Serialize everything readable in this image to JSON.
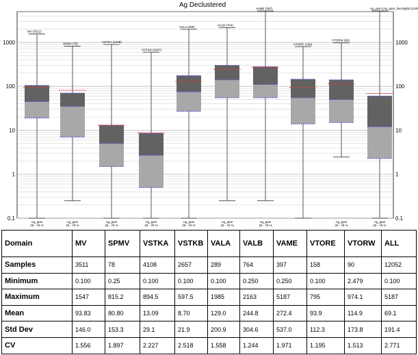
{
  "chart_data": {
    "type": "box",
    "title": "Ag Declustered",
    "yscale": "log",
    "ylim": [
      0.1,
      5000
    ],
    "yticks": [
      "0.1",
      "1",
      "10",
      "100",
      "1000"
    ],
    "ytick_values": [
      0.1,
      1,
      10,
      100,
      1000
    ],
    "grid": true,
    "boxes": [
      {
        "label": "MV (3511)",
        "bottom_label": "Ag_ppm",
        "bottom_sub": "25 - 75 %",
        "min": 0.1,
        "q1": 19,
        "median": 45,
        "mean": 93.83,
        "q3": 105,
        "max": 1547
      },
      {
        "label": "SPMV (78)",
        "bottom_label": "Ag_ppm",
        "bottom_sub": "25 - 75 %",
        "min": 0.25,
        "q1": 7,
        "median": 35,
        "mean": 80.8,
        "q3": 70,
        "max": 815.2
      },
      {
        "label": "VSTKA (4108)",
        "bottom_label": "Ag_ppm",
        "bottom_sub": "25 - 75 %",
        "min": 0.1,
        "q1": 1.5,
        "median": 5,
        "mean": 13.09,
        "q3": 13,
        "max": 894.5
      },
      {
        "label": "VSTKB (2657)",
        "bottom_label": "Ag_ppm",
        "bottom_sub": "25 - 75 %",
        "min": 0.1,
        "q1": 0.5,
        "median": 2.7,
        "mean": 8.7,
        "q3": 8.5,
        "max": 597.5
      },
      {
        "label": "VALA (289)",
        "bottom_label": "Ag_ppm",
        "bottom_sub": "25 - 75 %",
        "min": 0.1,
        "q1": 27,
        "median": 75,
        "mean": 129,
        "q3": 175,
        "max": 1985
      },
      {
        "label": "VALB (764)",
        "bottom_label": "Ag_ppm",
        "bottom_sub": "25 - 75 %",
        "min": 0.25,
        "q1": 55,
        "median": 140,
        "mean": 244.8,
        "q3": 300,
        "max": 2163
      },
      {
        "label": "VAME (397)",
        "bottom_label": "Ag_ppm",
        "bottom_sub": "25 - 75 %",
        "min": 0.25,
        "q1": 55,
        "median": 110,
        "mean": 272.4,
        "q3": 280,
        "max": 5187
      },
      {
        "label": "VTORE (158)",
        "bottom_label": "",
        "bottom_sub": "",
        "min": 0.1,
        "q1": 14,
        "median": 55,
        "mean": 93.9,
        "q3": 145,
        "max": 795
      },
      {
        "label": "VTORW (90)",
        "bottom_label": "Ag_ppm",
        "bottom_sub": "25 - 75 %",
        "min": 2.479,
        "q1": 15,
        "median": 50,
        "mean": 114.9,
        "q3": 140,
        "max": 974.1
      },
      {
        "label": "Ag_ppm (Ag_ppm_DecWght) (12052)",
        "bottom_label": "Ag_ppm",
        "bottom_sub": "25 - 75 %",
        "min": 0.1,
        "q1": 2.3,
        "median": 12,
        "mean": 69.1,
        "q3": 60,
        "max": 5187
      }
    ]
  },
  "table": {
    "header_label": "Domain",
    "columns": [
      "MV",
      "SPMV",
      "VSTKA",
      "VSTKB",
      "VALA",
      "VALB",
      "VAME",
      "VTORE",
      "VTORW",
      "ALL"
    ],
    "rows": [
      {
        "label": "Samples",
        "values": [
          "3511",
          "78",
          "4108",
          "2657",
          "289",
          "764",
          "397",
          "158",
          "90",
          "12052"
        ]
      },
      {
        "label": "Minimum",
        "values": [
          "0.100",
          "0.25",
          "0.100",
          "0.100",
          "0.100",
          "0.250",
          "0.250",
          "0.100",
          "2.479",
          "0.100"
        ]
      },
      {
        "label": "Maximum",
        "values": [
          "1547",
          "815.2",
          "894.5",
          "597.5",
          "1985",
          "2163",
          "5187",
          "795",
          "974.1",
          "5187"
        ]
      },
      {
        "label": "Mean",
        "values": [
          "93.83",
          "80.80",
          "13.09",
          "8.70",
          "129.0",
          "244.8",
          "272.4",
          "93.9",
          "114.9",
          "69.1"
        ]
      },
      {
        "label": "Std Dev",
        "values": [
          "146.0",
          "153.3",
          "29.1",
          "21.9",
          "200.9",
          "304.6",
          "537.0",
          "112.3",
          "173.8",
          "191.4"
        ]
      },
      {
        "label": "CV",
        "values": [
          "1.556",
          "1.897",
          "2.227",
          "2.518",
          "1.558",
          "1.244",
          "1.971",
          "1.195",
          "1.513",
          "2.771"
        ]
      }
    ]
  },
  "colors": {
    "box_upper": "#626262",
    "box_lower": "#a8a8a8",
    "median_line": "#5a4fd0",
    "mean_line": "#e03a3a",
    "whisker": "#444444",
    "grid": "#bdbdbd"
  }
}
